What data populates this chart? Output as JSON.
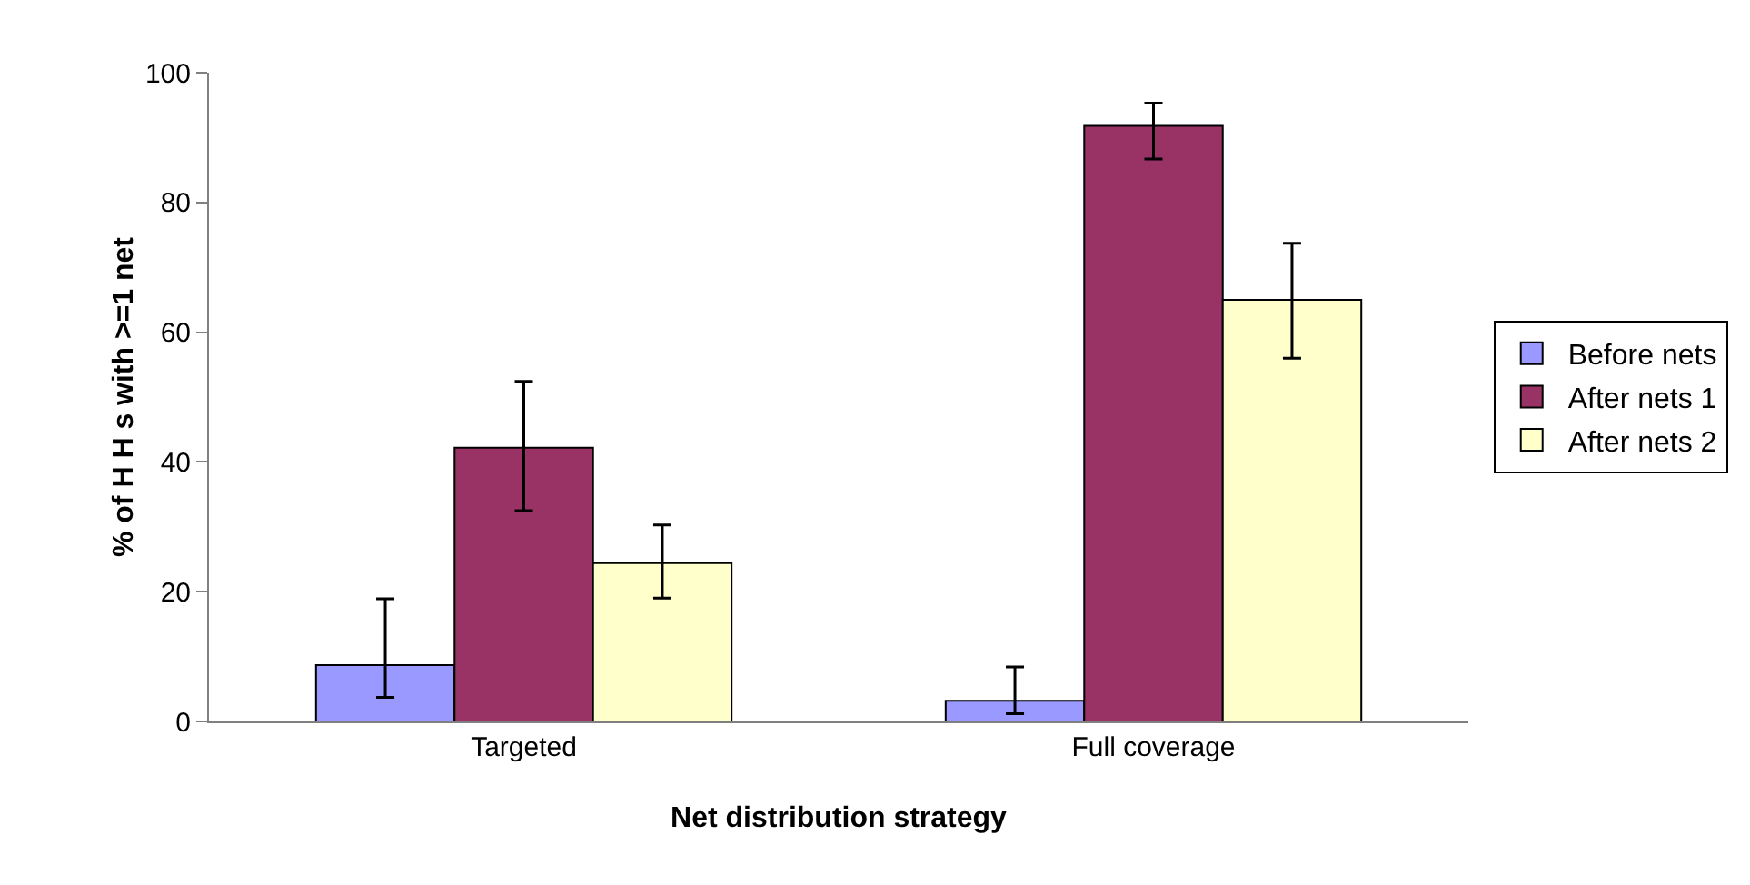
{
  "chart_data": {
    "type": "bar",
    "xlabel": "Net distribution strategy",
    "ylabel": "% of H H s with >=1 net",
    "categories": [
      "Targeted",
      "Full coverage"
    ],
    "series": [
      {
        "name": "Before nets",
        "color": "#9999ff",
        "values": [
          8.7,
          3.2
        ],
        "errors": [
          [
            3.7,
            18.9
          ],
          [
            1.2,
            8.4
          ]
        ]
      },
      {
        "name": "After nets 1",
        "color": "#993366",
        "values": [
          42.2,
          91.8
        ],
        "errors": [
          [
            32.5,
            52.4
          ],
          [
            86.7,
            95.3
          ]
        ]
      },
      {
        "name": "After nets 2",
        "color": "#ffffcc",
        "values": [
          24.4,
          65.0
        ],
        "errors": [
          [
            19.0,
            30.3
          ],
          [
            56.0,
            73.7
          ]
        ]
      }
    ],
    "ylim": [
      0,
      100
    ],
    "yticks": [
      0,
      20,
      40,
      60,
      80,
      100
    ],
    "grid": false,
    "legend": "right"
  }
}
